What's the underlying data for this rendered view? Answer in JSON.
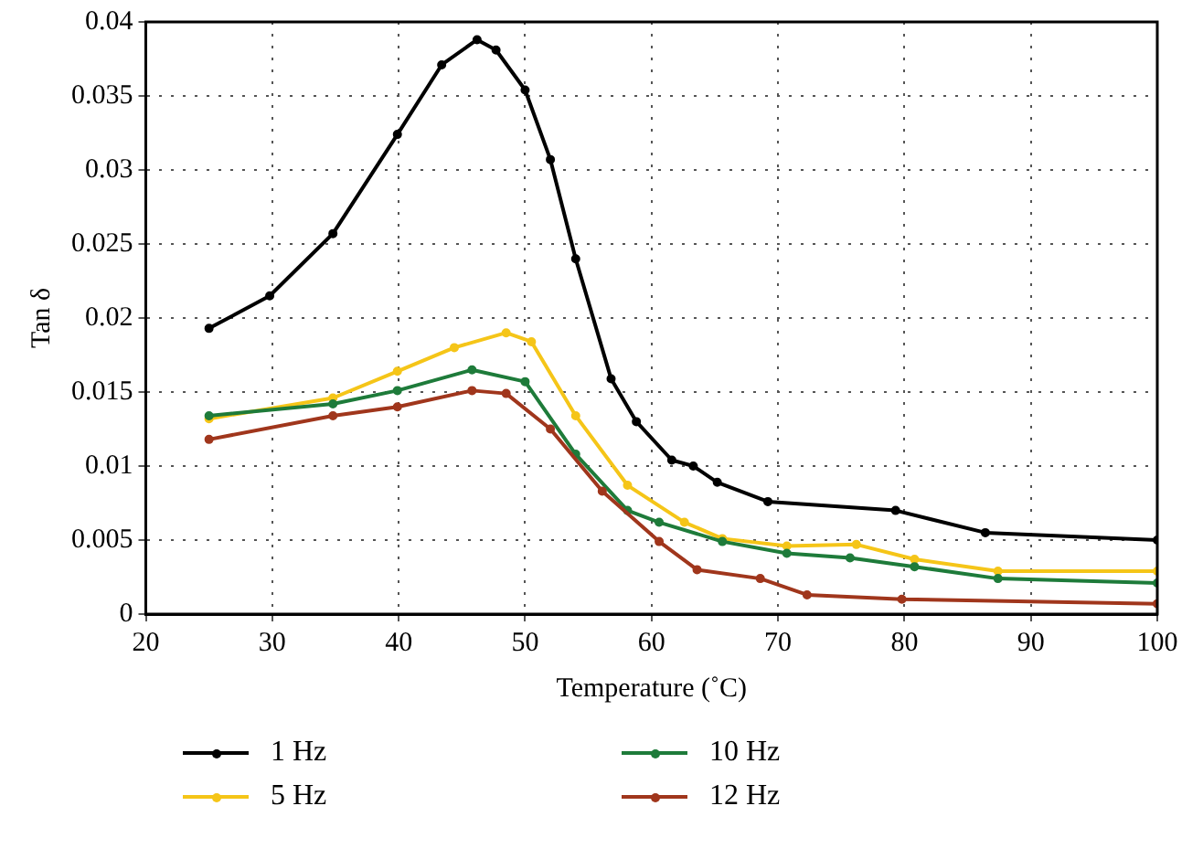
{
  "chart_data": {
    "type": "line",
    "xlabel": "Temperature (˚C)",
    "ylabel": "Tan δ",
    "xlim": [
      20,
      100
    ],
    "xticks": [
      20,
      30,
      40,
      50,
      60,
      70,
      80,
      90,
      100
    ],
    "ylim": [
      0,
      0.04
    ],
    "yticks": [
      0,
      0.005,
      0.01,
      0.015,
      0.02,
      0.025,
      0.03,
      0.035,
      0.04
    ],
    "grid": true,
    "legend": "bottom",
    "marker": "circle",
    "line_style": "solid",
    "series": [
      {
        "name": "1 Hz",
        "color": "#000000",
        "x": [
          25,
          29.8,
          34.8,
          39.9,
          43.4,
          46.2,
          47.7,
          50,
          52,
          54,
          56.8,
          58.8,
          61.6,
          63.3,
          65.2,
          69.2,
          79.3,
          86.4,
          100
        ],
        "values": [
          0.0193,
          0.0215,
          0.0257,
          0.0324,
          0.0371,
          0.0388,
          0.0381,
          0.0354,
          0.0307,
          0.024,
          0.0159,
          0.013,
          0.0104,
          0.01,
          0.0089,
          0.0076,
          0.007,
          0.0055,
          0.005
        ]
      },
      {
        "name": "5 Hz",
        "color": "#f5c518",
        "x": [
          25,
          34.8,
          39.9,
          44.4,
          48.5,
          50.5,
          54,
          58.1,
          62.6,
          65.6,
          70.7,
          76.2,
          80.8,
          87.4,
          100
        ],
        "values": [
          0.0132,
          0.0146,
          0.0164,
          0.018,
          0.019,
          0.0184,
          0.0134,
          0.0087,
          0.0062,
          0.0051,
          0.0046,
          0.0047,
          0.0037,
          0.0029,
          0.0029
        ]
      },
      {
        "name": "10 Hz",
        "color": "#1e7b3a",
        "x": [
          25,
          34.8,
          39.9,
          45.8,
          50,
          54,
          58.1,
          60.6,
          65.6,
          70.7,
          75.7,
          80.8,
          87.4,
          100
        ],
        "values": [
          0.0134,
          0.0142,
          0.0151,
          0.0165,
          0.0157,
          0.0108,
          0.007,
          0.0062,
          0.0049,
          0.0041,
          0.0038,
          0.0032,
          0.0024,
          0.0021
        ]
      },
      {
        "name": "12 Hz",
        "color": "#a0361c",
        "x": [
          25,
          34.8,
          39.9,
          45.8,
          48.5,
          52,
          56.1,
          60.6,
          63.6,
          68.6,
          72.3,
          79.8,
          100
        ],
        "values": [
          0.0118,
          0.0134,
          0.014,
          0.0151,
          0.0149,
          0.0125,
          0.0083,
          0.0049,
          0.003,
          0.0024,
          0.0013,
          0.001,
          0.0007
        ]
      }
    ]
  }
}
